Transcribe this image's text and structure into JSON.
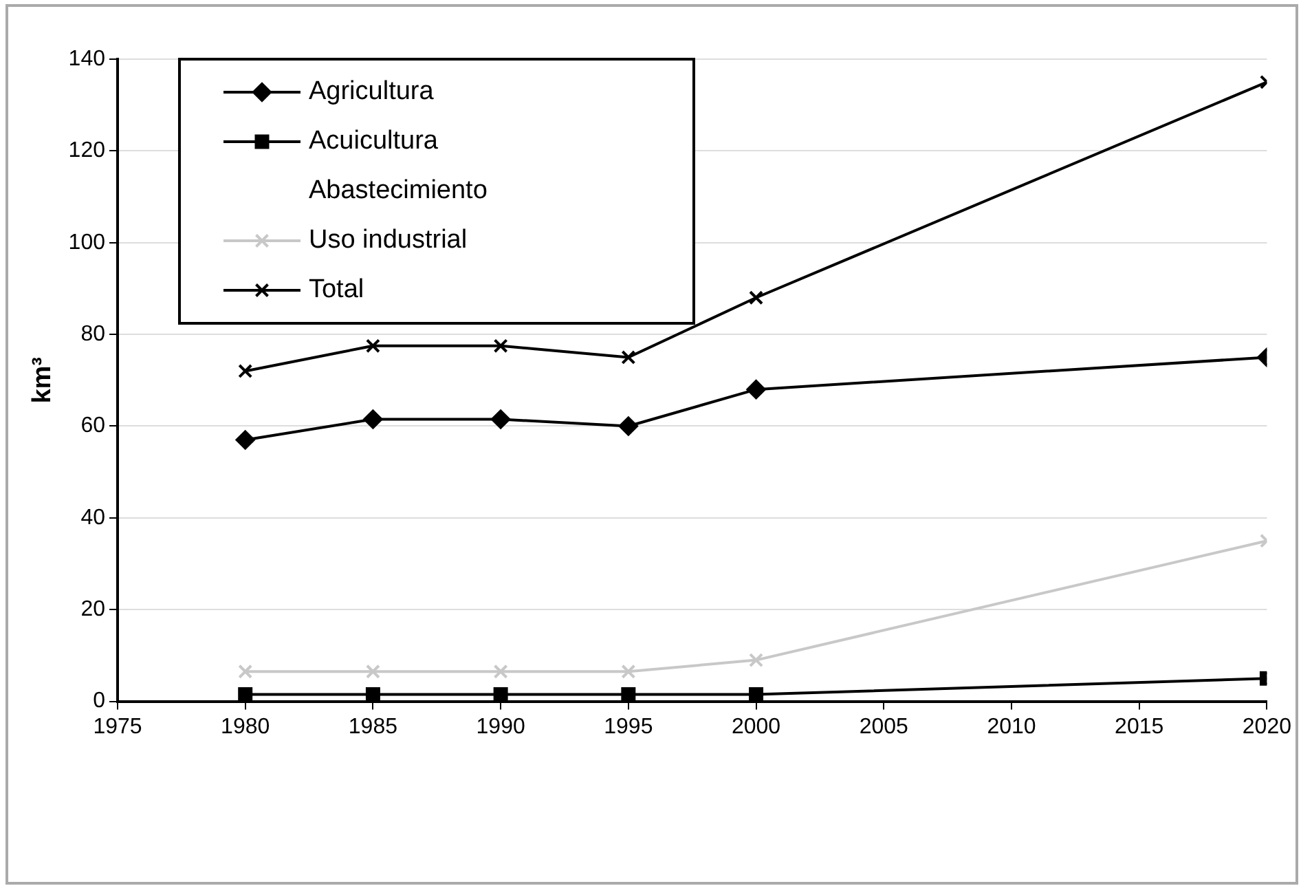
{
  "chart_data": {
    "type": "line",
    "ylabel": "km³",
    "x": [
      1980,
      1985,
      1990,
      1995,
      2000,
      2020
    ],
    "xlim": [
      1975,
      2020
    ],
    "xticks": [
      1975,
      1980,
      1985,
      1990,
      1995,
      2000,
      2005,
      2010,
      2015,
      2020
    ],
    "ylim": [
      0,
      140
    ],
    "yticks": [
      0,
      20,
      40,
      60,
      80,
      100,
      120,
      140
    ],
    "grid": "y",
    "legend": "top left",
    "line_style": "solid",
    "series": [
      {
        "name": "Agricultura",
        "color": "#000000",
        "marker": "diamond",
        "values": [
          57,
          61.5,
          61.5,
          60,
          68,
          75
        ]
      },
      {
        "name": "Acuicultura",
        "color": "#000000",
        "marker": "square",
        "values": [
          1.5,
          1.5,
          1.5,
          1.5,
          1.5,
          5
        ]
      },
      {
        "name": "Abastecimiento",
        "marker": "none",
        "values": [
          null,
          null,
          null,
          null,
          null,
          null
        ]
      },
      {
        "name": "Uso industrial",
        "color": "#c8c8c8",
        "marker": "cross",
        "values": [
          6.5,
          6.5,
          6.5,
          6.5,
          9,
          35
        ]
      },
      {
        "name": "Total",
        "color": "#000000",
        "marker": "cross",
        "values": [
          72,
          77.5,
          77.5,
          75,
          88,
          135
        ]
      }
    ]
  }
}
